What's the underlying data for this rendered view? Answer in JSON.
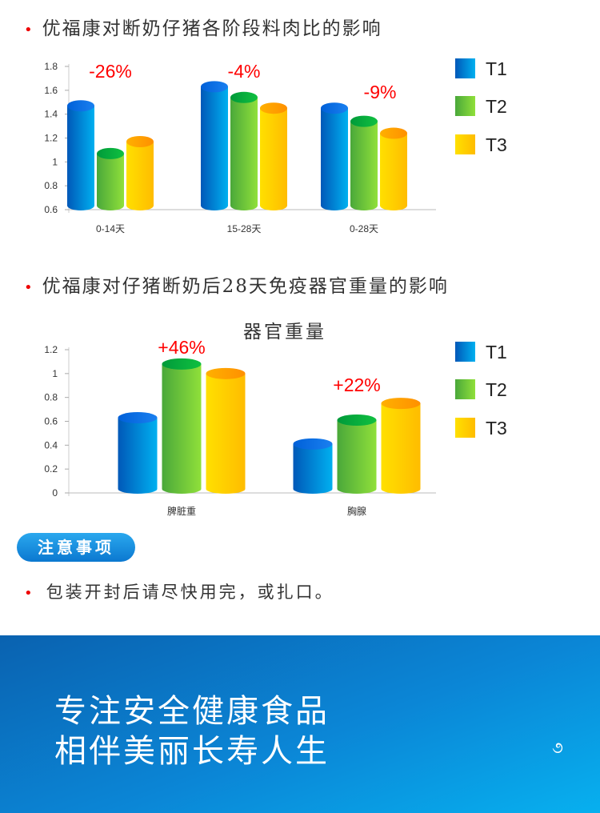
{
  "section1": {
    "heading": "优福康对断奶仔猪各阶段料肉比的影响"
  },
  "section2": {
    "heading": "优福康对仔猪断奶后28天免疫器官重量的影响"
  },
  "notice": {
    "badge": "注意事项",
    "text": "包装开封后请尽快用完，或扎口。"
  },
  "footer": {
    "line1": "专注安全健康食品",
    "line2": "相伴美丽长寿人生",
    "icon": "swirl-icon"
  },
  "colors": {
    "T1": "#0a9ee6",
    "T2": "#6cc23a",
    "T3": "#ffc400",
    "annotation": "#ff0000"
  },
  "chart_data": [
    {
      "type": "bar",
      "title": "",
      "categories": [
        "0-14天",
        "15-28天",
        "0-28天"
      ],
      "series": [
        {
          "name": "T1",
          "values": [
            1.47,
            1.63,
            1.45
          ]
        },
        {
          "name": "T2",
          "values": [
            1.07,
            1.54,
            1.34
          ]
        },
        {
          "name": "T3",
          "values": [
            1.17,
            1.45,
            1.24
          ]
        }
      ],
      "annotations": [
        "-26%",
        "-4%",
        "-9%"
      ],
      "ylim": [
        0.6,
        1.8
      ],
      "yticks": [
        "0.6",
        "0.8",
        "1",
        "1.2",
        "1.4",
        "1.6",
        "1.8"
      ],
      "legend": "right"
    },
    {
      "type": "bar",
      "title": "器官重量",
      "categories": [
        "脾脏重",
        "胸腺"
      ],
      "series": [
        {
          "name": "T1",
          "values": [
            0.63,
            0.41
          ]
        },
        {
          "name": "T2",
          "values": [
            1.08,
            0.61
          ]
        },
        {
          "name": "T3",
          "values": [
            1.0,
            0.75
          ]
        }
      ],
      "annotations": [
        "+46%",
        "+22%"
      ],
      "ylim": [
        0,
        1.2
      ],
      "yticks": [
        "0",
        "0.2",
        "0.4",
        "0.6",
        "0.8",
        "1",
        "1.2"
      ],
      "legend": "right"
    }
  ]
}
